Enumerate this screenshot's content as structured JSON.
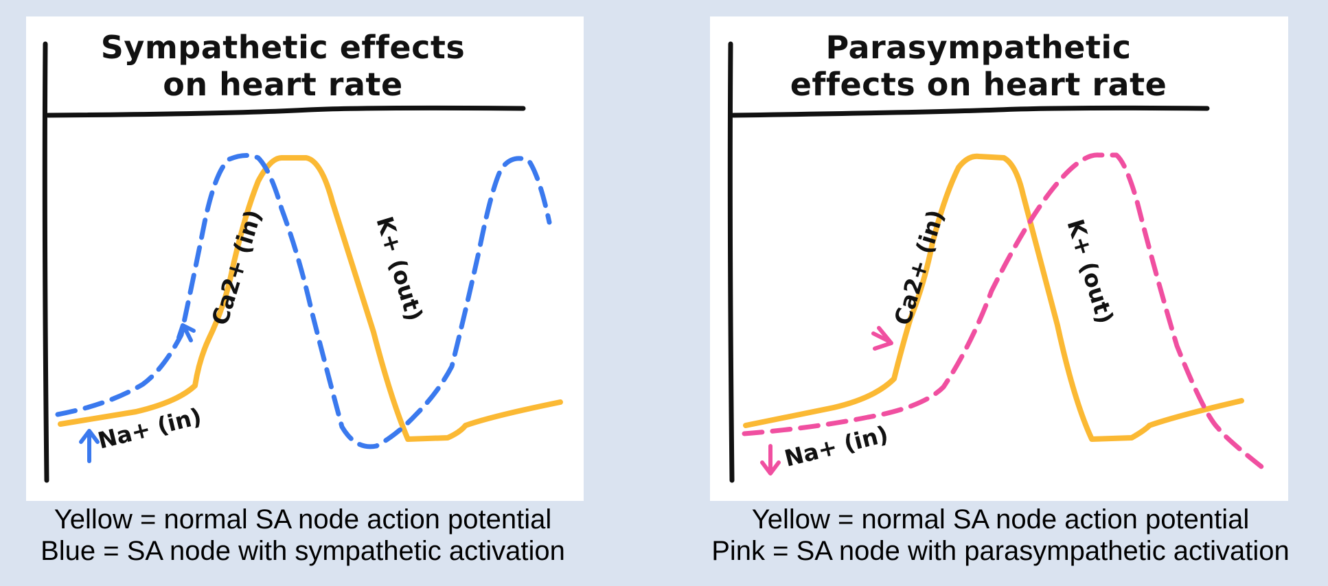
{
  "panels": [
    {
      "title_line1": "Sympathetic effects",
      "title_line2": "on  heart rate",
      "labels": {
        "na": "Na+ (in)",
        "ca": "Ca2+ (in)",
        "k": "K+ (out)"
      },
      "caption_line1": "Yellow = normal SA node action potential",
      "caption_line2": "Blue = SA node with sympathetic activation",
      "modified_curve_color": "#3a79ee"
    },
    {
      "title_line1": "Parasympathetic",
      "title_line2": "effects on heart rate",
      "labels": {
        "na": "Na+ (in)",
        "ca": "Ca2+ (in)",
        "k": "K+ (out)"
      },
      "caption_line1": "Yellow = normal SA node action potential",
      "caption_line2": "Pink = SA node with parasympathetic activation",
      "modified_curve_color": "#f04fa0"
    }
  ],
  "colors": {
    "normal_curve": "#fbb934",
    "background": "#dae3f0",
    "panel": "#ffffff"
  }
}
